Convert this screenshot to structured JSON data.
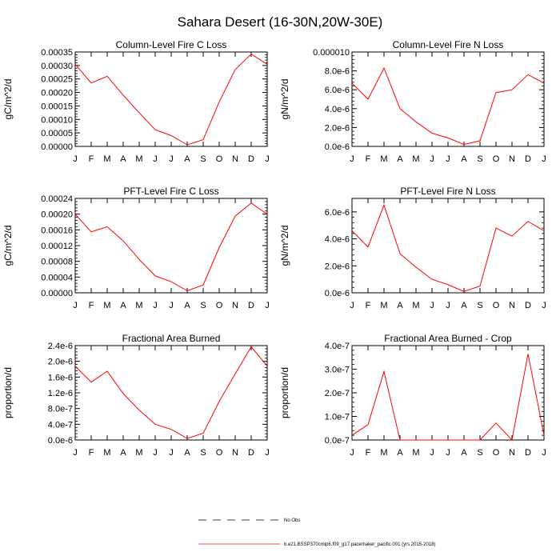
{
  "page_title": "Sahara Desert (16-30N,20W-30E)",
  "month_labels": [
    "J",
    "F",
    "M",
    "A",
    "M",
    "J",
    "J",
    "A",
    "S",
    "O",
    "N",
    "D",
    "J"
  ],
  "colors": {
    "series": "#ff0000",
    "axis": "#000000",
    "obs": "#000000"
  },
  "legend": {
    "obs_label": "No Obs",
    "model_label": "b.e21.BSSP370cmip6.f09_g17.pacemaker_pacific.001 (yrs 2015-2018)"
  },
  "chart_data": [
    {
      "type": "line",
      "title": "Column-Level Fire C Loss",
      "ylabel": "gC/m^2/d",
      "ylim": [
        0,
        0.00035
      ],
      "yticks": [
        0,
        5e-05,
        0.0001,
        0.00015,
        0.0002,
        0.00025,
        0.0003,
        0.00035
      ],
      "ytick_labels": [
        "0.00000",
        "0.00005",
        "0.00010",
        "0.00015",
        "0.00020",
        "0.00025",
        "0.00030",
        "0.00035"
      ],
      "categories": [
        "J",
        "F",
        "M",
        "A",
        "M",
        "J",
        "J",
        "A",
        "S",
        "O",
        "N",
        "D",
        "J"
      ],
      "values": [
        0.000305,
        0.000235,
        0.00026,
        0.00019,
        0.000125,
        6.2e-05,
        4e-05,
        6e-06,
        2.5e-05,
        0.000165,
        0.000285,
        0.000342,
        0.000305
      ]
    },
    {
      "type": "line",
      "title": "Column-Level Fire N Loss",
      "ylabel": "gN/m^2/d",
      "ylim": [
        0,
        1e-05
      ],
      "yticks": [
        0,
        2e-06,
        4e-06,
        6e-06,
        8e-06,
        1e-05
      ],
      "ytick_labels": [
        "0.0e-6",
        "2.0e-6",
        "4.0e-6",
        "6.0e-6",
        "8.0e-6",
        "0.000010"
      ],
      "categories": [
        "J",
        "F",
        "M",
        "A",
        "M",
        "J",
        "J",
        "A",
        "S",
        "O",
        "N",
        "D",
        "J"
      ],
      "values": [
        6.7e-06,
        5e-06,
        8.3e-06,
        4e-06,
        2.6e-06,
        1.4e-06,
        9e-07,
        2e-07,
        6e-07,
        5.7e-06,
        6e-06,
        7.6e-06,
        6.7e-06
      ]
    },
    {
      "type": "line",
      "title": "PFT-Level Fire C Loss",
      "ylabel": "gC/m^2/d",
      "ylim": [
        0,
        0.00024
      ],
      "yticks": [
        0,
        4e-05,
        8e-05,
        0.00012,
        0.00016,
        0.0002,
        0.00024
      ],
      "ytick_labels": [
        "0.00000",
        "0.00004",
        "0.00008",
        "0.00012",
        "0.00016",
        "0.00020",
        "0.00024"
      ],
      "categories": [
        "J",
        "F",
        "M",
        "A",
        "M",
        "J",
        "J",
        "A",
        "S",
        "O",
        "N",
        "D",
        "J"
      ],
      "values": [
        0.0002,
        0.000155,
        0.000168,
        0.000132,
        8.5e-05,
        4.3e-05,
        2.8e-05,
        5e-06,
        2e-05,
        0.000115,
        0.000195,
        0.000228,
        0.0002
      ]
    },
    {
      "type": "line",
      "title": "PFT-Level Fire N Loss",
      "ylabel": "gN/m^2/d",
      "ylim": [
        0,
        7e-06
      ],
      "yticks": [
        0,
        2e-06,
        4e-06,
        6e-06
      ],
      "ytick_labels": [
        "0.0e-6",
        "2.0e-6",
        "4.0e-6",
        "6.0e-6"
      ],
      "categories": [
        "J",
        "F",
        "M",
        "A",
        "M",
        "J",
        "J",
        "A",
        "S",
        "O",
        "N",
        "D",
        "J"
      ],
      "values": [
        4.6e-06,
        3.4e-06,
        6.5e-06,
        2.9e-06,
        1.9e-06,
        1e-06,
        6e-07,
        1e-07,
        5e-07,
        4.8e-06,
        4.2e-06,
        5.3e-06,
        4.6e-06
      ]
    },
    {
      "type": "line",
      "title": "Fractional Area Burned",
      "ylabel": "proportion/d",
      "ylim": [
        0,
        2.4e-06
      ],
      "yticks": [
        0,
        4e-07,
        8e-07,
        1.2e-06,
        1.6e-06,
        2e-06,
        2.4e-06
      ],
      "ytick_labels": [
        "0.0e-6",
        "4.0e-7",
        "8.0e-7",
        "1.2e-6",
        "1.6e-6",
        "2.0e-6",
        "2.4e-6"
      ],
      "categories": [
        "J",
        "F",
        "M",
        "A",
        "M",
        "J",
        "J",
        "A",
        "S",
        "O",
        "N",
        "D",
        "J"
      ],
      "values": [
        1.88e-06,
        1.47e-06,
        1.75e-06,
        1.18e-06,
        7.6e-07,
        4e-07,
        2.7e-07,
        4e-08,
        1.7e-07,
        9.8e-07,
        1.68e-06,
        2.37e-06,
        1.88e-06
      ]
    },
    {
      "type": "line",
      "title": "Fractional Area Burned - Crop",
      "ylabel": "proportion/d",
      "ylim": [
        0,
        4e-07
      ],
      "yticks": [
        0,
        1e-07,
        2e-07,
        3e-07,
        4e-07
      ],
      "ytick_labels": [
        "0.0e-7",
        "1.0e-7",
        "2.0e-7",
        "3.0e-7",
        "4.0e-7"
      ],
      "categories": [
        "J",
        "F",
        "M",
        "A",
        "M",
        "J",
        "J",
        "A",
        "S",
        "O",
        "N",
        "D",
        "J"
      ],
      "values": [
        2e-08,
        6.5e-08,
        2.9e-07,
        0,
        0,
        0,
        0,
        0,
        0,
        7.2e-08,
        0,
        3.65e-07,
        2e-08
      ]
    }
  ]
}
